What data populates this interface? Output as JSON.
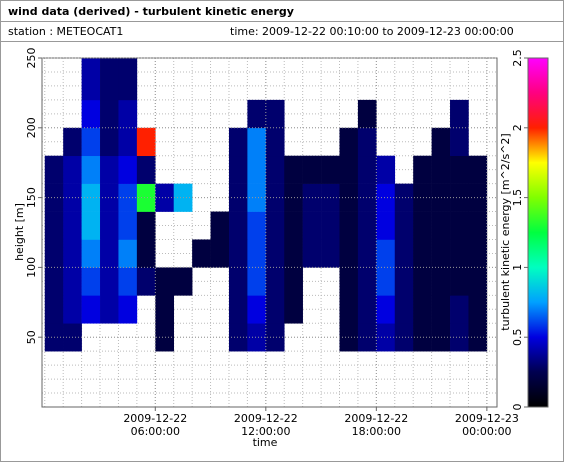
{
  "chart_data": {
    "type": "heatmap",
    "title": "wind data (derived) - turbulent kinetic energy",
    "station": "station : METEOCAT1",
    "time_range": "time: 2009-12-22 00:10:00 to 2009-12-23 00:00:00",
    "x_label": "time",
    "y_label": "height [m]",
    "colorbar_label": "turbulent kinetic energy [m^2/s^2]",
    "xlim": [
      -0.15,
      24.55
    ],
    "xticks": [
      {
        "value": 6,
        "label": "2009-12-22 06:00:00"
      },
      {
        "value": 12,
        "label": "2009-12-22 12:00:00"
      },
      {
        "value": 18,
        "label": "2009-12-22 18:00:00"
      },
      {
        "value": 24,
        "label": "2009-12-23 00:00:00"
      }
    ],
    "ylim": [
      0,
      250
    ],
    "yticks": [
      50,
      100,
      150,
      200,
      250
    ],
    "zlim": [
      0,
      2.5
    ],
    "zticks": [
      0,
      0.5,
      1,
      1.5,
      2,
      2.5
    ],
    "grid": true,
    "x_minor_step": 1,
    "y_minor_step": 10,
    "colorscale": [
      "#000000",
      "#000050",
      "#0000e0",
      "#00a0ff",
      "#00ffc0",
      "#00ff40",
      "#80ff00",
      "#ffff00",
      "#ff2000",
      "#ff0080",
      "#ff00ff"
    ],
    "x_bins": [
      0,
      1,
      2,
      3,
      4,
      5,
      6,
      7,
      8,
      9,
      10,
      11,
      12,
      13,
      14,
      15,
      16,
      17,
      18,
      19,
      20,
      21,
      22,
      23,
      24
    ],
    "y_bins": [
      40,
      60,
      80,
      100,
      120,
      140,
      160,
      180,
      200,
      220,
      240,
      250
    ],
    "z": [
      [
        0.3,
        0.3,
        null,
        null,
        null,
        null,
        0.2,
        null,
        null,
        null,
        0.3,
        0.4,
        0.3,
        null,
        null,
        null,
        0.2,
        0.3,
        0.4,
        0.3,
        0.2,
        0.2,
        0.3,
        0.2
      ],
      [
        0.3,
        0.4,
        0.5,
        0.4,
        0.5,
        null,
        0.2,
        null,
        null,
        null,
        0.3,
        0.5,
        0.3,
        0.2,
        null,
        null,
        0.2,
        0.3,
        0.5,
        0.3,
        0.2,
        0.2,
        0.3,
        0.2
      ],
      [
        0.3,
        0.4,
        0.6,
        0.4,
        0.6,
        0.3,
        0.2,
        0.2,
        null,
        null,
        0.3,
        0.6,
        0.3,
        0.2,
        null,
        null,
        0.2,
        0.3,
        0.6,
        0.3,
        0.2,
        0.2,
        0.2,
        0.2
      ],
      [
        0.3,
        0.4,
        0.7,
        0.4,
        0.7,
        0.2,
        null,
        null,
        0.2,
        0.2,
        0.3,
        0.6,
        0.3,
        0.2,
        0.3,
        0.3,
        0.2,
        0.3,
        0.6,
        0.3,
        0.2,
        0.2,
        0.2,
        0.2
      ],
      [
        0.3,
        0.4,
        0.8,
        0.4,
        0.6,
        0.2,
        null,
        null,
        null,
        0.2,
        0.3,
        0.6,
        0.3,
        0.2,
        0.3,
        0.3,
        0.2,
        0.3,
        0.5,
        0.3,
        0.2,
        0.2,
        0.2,
        0.2
      ],
      [
        0.3,
        0.4,
        0.8,
        0.4,
        0.6,
        1.3,
        0.4,
        0.8,
        null,
        null,
        0.3,
        0.7,
        0.3,
        0.2,
        0.3,
        0.3,
        0.2,
        0.3,
        0.5,
        0.3,
        0.2,
        0.2,
        0.2,
        0.2
      ],
      [
        0.3,
        0.4,
        0.7,
        0.4,
        0.5,
        0.3,
        null,
        null,
        null,
        null,
        0.3,
        0.7,
        0.3,
        0.2,
        0.2,
        0.2,
        0.2,
        0.3,
        0.4,
        null,
        0.2,
        0.2,
        0.2,
        0.2
      ],
      [
        null,
        0.3,
        0.6,
        0.3,
        0.4,
        2.0,
        null,
        null,
        null,
        null,
        0.3,
        0.7,
        0.3,
        null,
        null,
        null,
        0.2,
        0.3,
        null,
        null,
        null,
        0.2,
        0.3,
        null
      ],
      [
        null,
        null,
        0.5,
        0.3,
        0.4,
        null,
        null,
        null,
        null,
        null,
        null,
        0.3,
        0.3,
        null,
        null,
        null,
        null,
        0.2,
        null,
        null,
        null,
        null,
        0.3,
        null
      ],
      [
        null,
        null,
        0.4,
        0.3,
        0.3,
        null,
        null,
        null,
        null,
        null,
        null,
        null,
        null,
        null,
        null,
        null,
        null,
        null,
        null,
        null,
        null,
        null,
        null,
        null
      ],
      [
        null,
        null,
        0.4,
        0.3,
        0.3,
        null,
        null,
        null,
        null,
        null,
        null,
        null,
        null,
        null,
        null,
        null,
        null,
        null,
        null,
        null,
        null,
        null,
        null,
        null
      ]
    ]
  }
}
